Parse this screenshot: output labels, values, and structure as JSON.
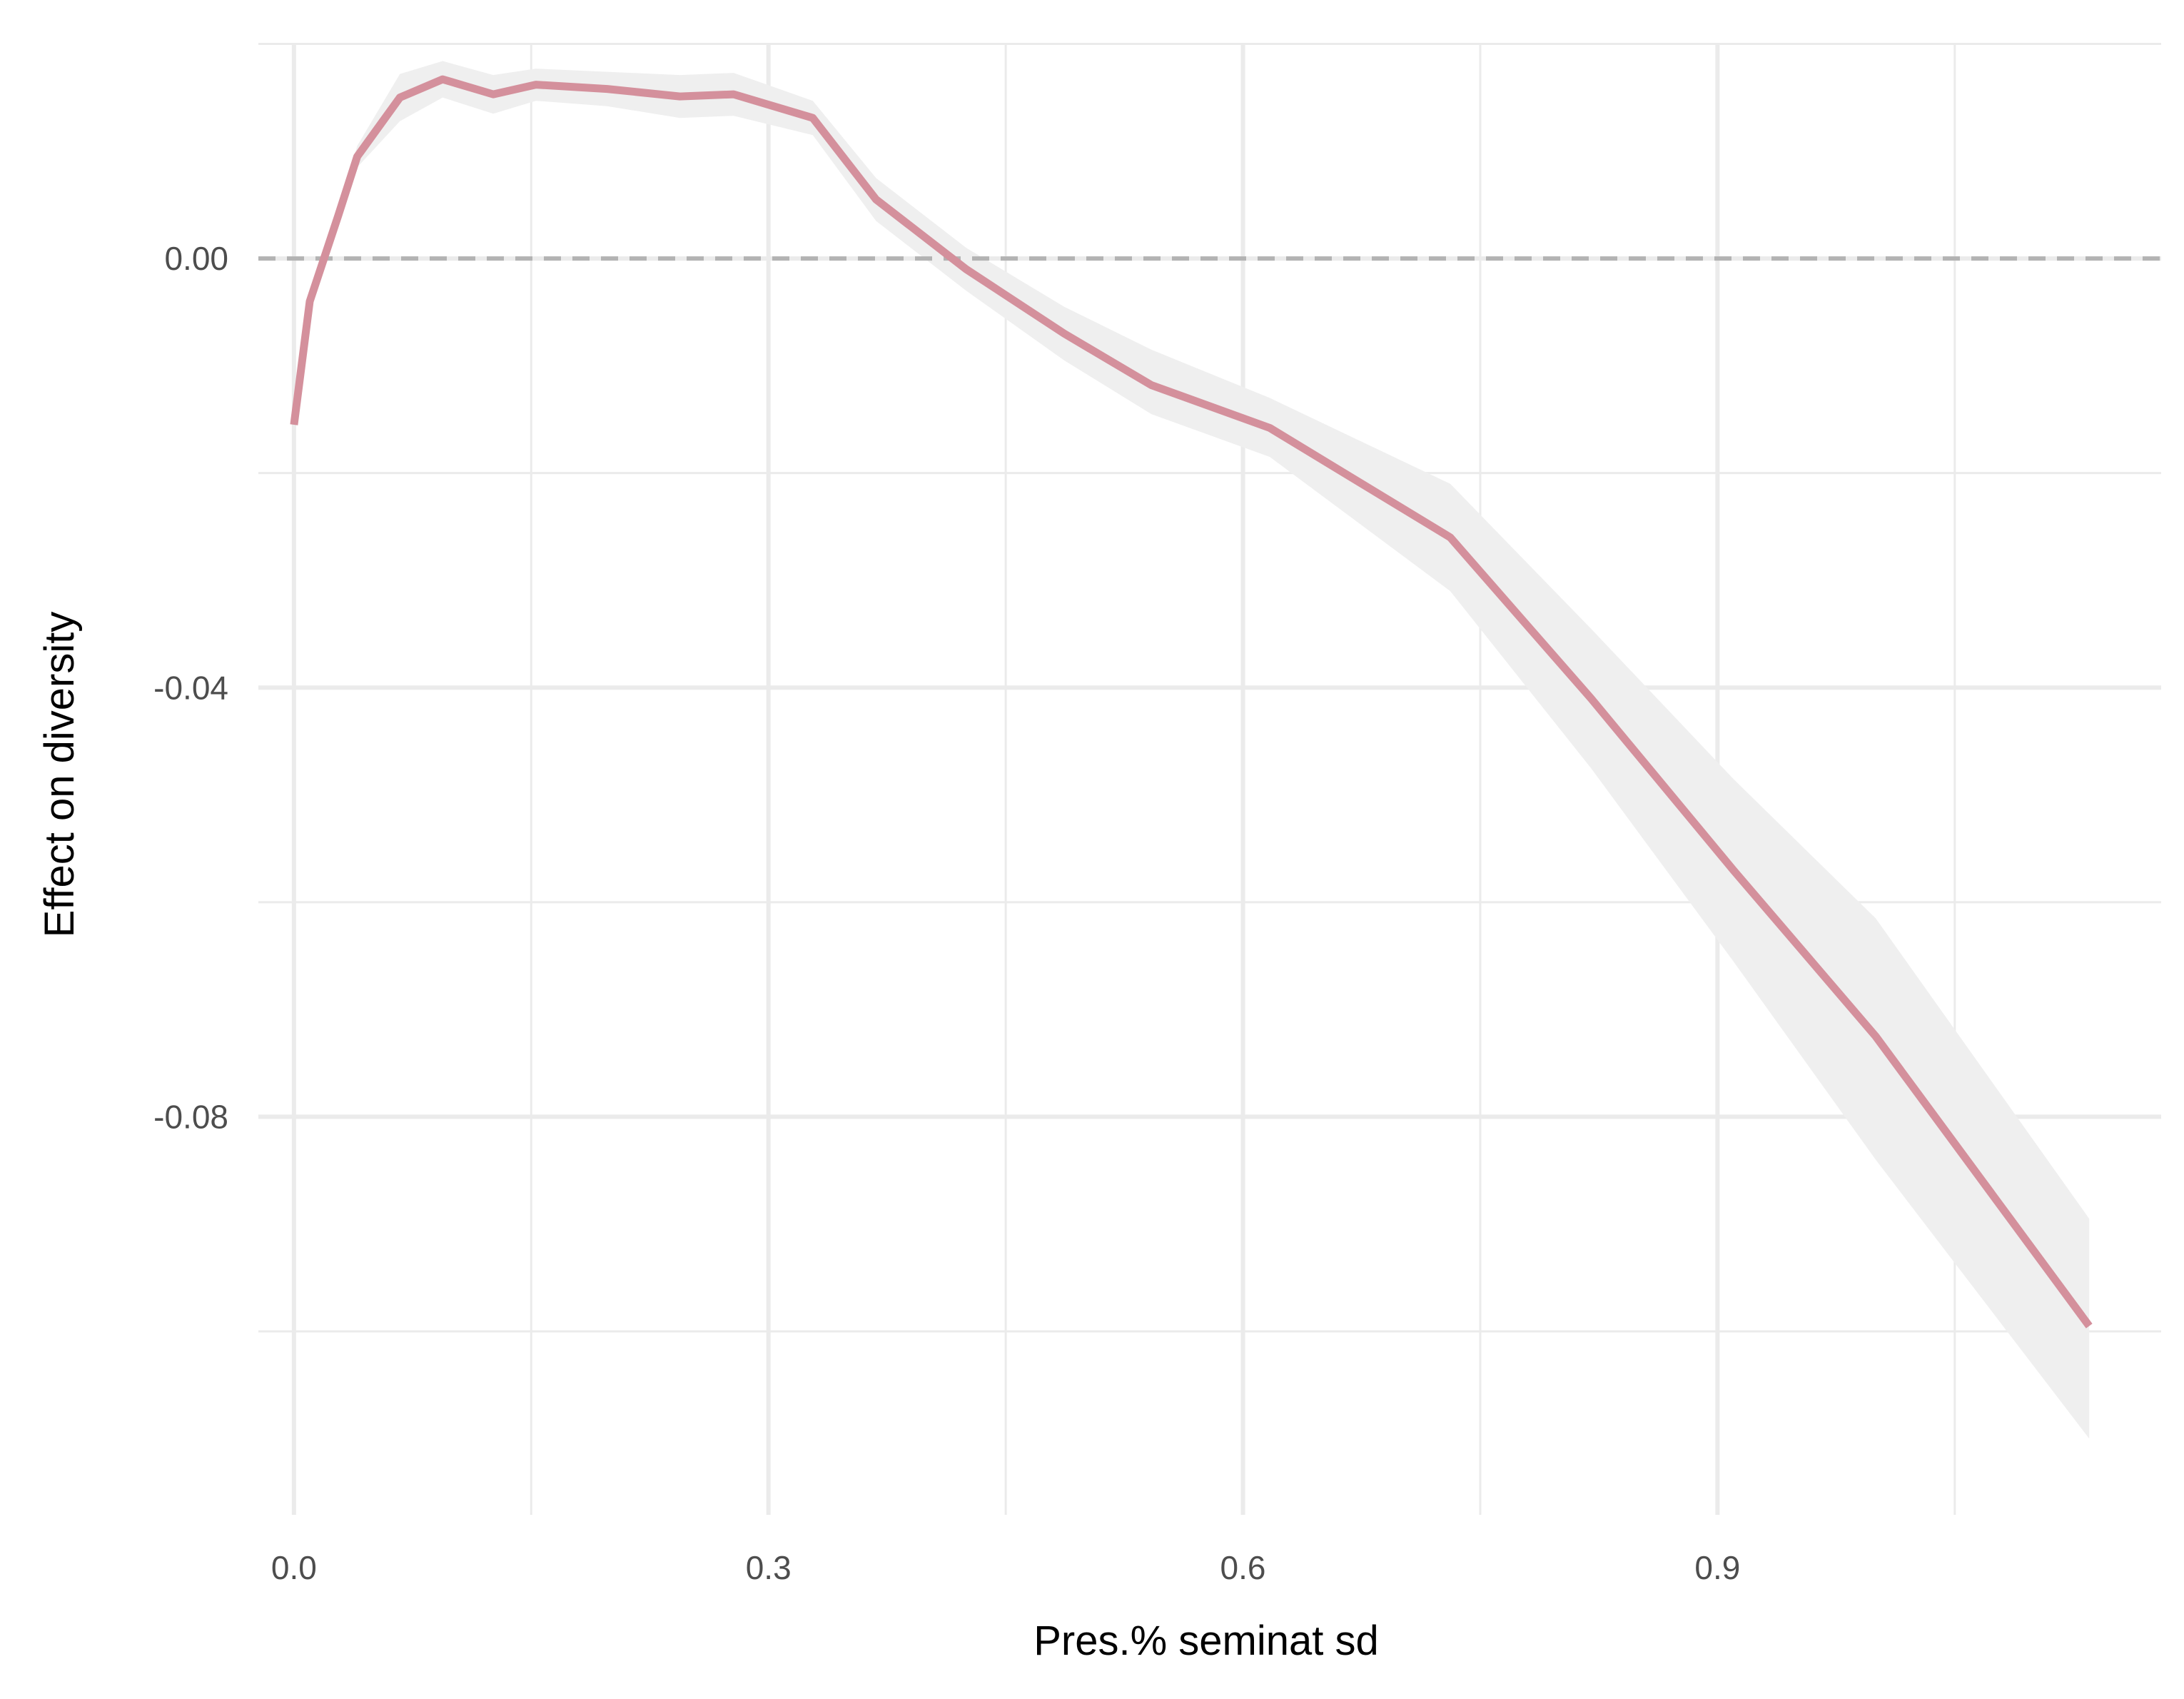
{
  "chart_data": {
    "type": "line",
    "title": "",
    "xlabel": "Pres.% seminat sd",
    "ylabel": "Effect on diversity",
    "xlim": [
      -0.0225,
      1.1805
    ],
    "ylim": [
      -0.1171,
      0.0201
    ],
    "x_ticks": [
      0.0,
      0.3,
      0.6,
      0.9
    ],
    "x_tick_labels": [
      "0.0",
      "0.3",
      "0.6",
      "0.9"
    ],
    "x_minor_ticks": [
      0.15,
      0.45,
      0.75,
      1.05
    ],
    "y_ticks": [
      0.0,
      -0.04,
      -0.08
    ],
    "y_tick_labels": [
      "0.00",
      "-0.04",
      "-0.08"
    ],
    "y_minor_ticks": [
      0.02,
      -0.02,
      -0.06,
      -0.1
    ],
    "grid": true,
    "reference_line": {
      "y": 0.0,
      "style": "dashed"
    },
    "colors": {
      "line": "#d4909c",
      "ribbon": "#efefef",
      "grid": "#ebebeb",
      "reference": "#b3b3b3"
    },
    "series": [
      {
        "x": [
          0.0,
          0.01,
          0.028,
          0.04,
          0.067,
          0.094,
          0.126,
          0.153,
          0.198,
          0.244,
          0.278,
          0.328,
          0.368,
          0.425,
          0.487,
          0.542,
          0.617,
          0.731,
          0.82,
          0.91,
          1.0,
          1.135
        ],
        "y": [
          -0.0155,
          -0.004,
          0.004,
          0.0095,
          0.015,
          0.0167,
          0.0153,
          0.0162,
          0.0158,
          0.0151,
          0.0153,
          0.0131,
          0.0055,
          -0.001,
          -0.007,
          -0.0118,
          -0.0158,
          -0.026,
          -0.041,
          -0.057,
          -0.0725,
          -0.0995
        ],
        "lower": [
          -0.016,
          -0.0045,
          0.0035,
          0.0085,
          0.0128,
          0.015,
          0.0135,
          0.0147,
          0.0142,
          0.0131,
          0.0133,
          0.0115,
          0.0035,
          -0.003,
          -0.0095,
          -0.0145,
          -0.0185,
          -0.031,
          -0.0475,
          -0.0655,
          -0.084,
          -0.11
        ],
        "upper": [
          -0.015,
          -0.0035,
          0.0045,
          0.0105,
          0.0172,
          0.0184,
          0.0171,
          0.0177,
          0.0174,
          0.0171,
          0.0173,
          0.0147,
          0.0075,
          0.001,
          -0.0045,
          -0.0085,
          -0.013,
          -0.021,
          -0.0345,
          -0.0485,
          -0.0615,
          -0.0895
        ]
      }
    ]
  }
}
